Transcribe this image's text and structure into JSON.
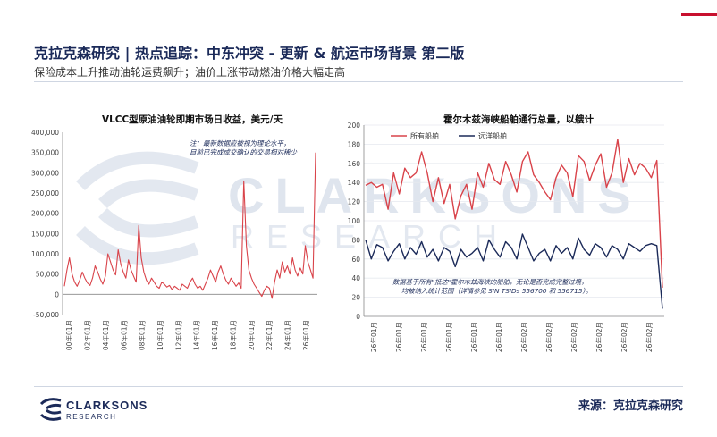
{
  "header": {
    "title": "克拉克森研究 | 热点追踪：中东冲突 - 更新 & 航运市场背景 第二版",
    "subtitle": "保险成本上升推动油轮运费飙升；油价上涨带动燃油价格大幅走高"
  },
  "watermark": {
    "line1": "CLARKSONS",
    "line2": "RESEARCH"
  },
  "footer": {
    "logo_line1": "CLARKSONS",
    "logo_line2": "RESEARCH",
    "source": "来源：克拉克森研究"
  },
  "colors": {
    "navy": "#1b2a59",
    "red": "#d9434a",
    "accent_red": "#c8102e"
  },
  "chart_data": [
    {
      "type": "line",
      "title": "VLCC型原油油轮即期市场日收益，美元/天",
      "ylim": [
        -50000,
        400000
      ],
      "yticks": [
        "-50,000",
        "0",
        "50,000",
        "100,000",
        "150,000",
        "200,000",
        "250,000",
        "300,000",
        "350,000",
        "400,000"
      ],
      "ytick_values": [
        -50000,
        0,
        50000,
        100000,
        150000,
        200000,
        250000,
        300000,
        350000,
        400000
      ],
      "x_labels": [
        "00年01月",
        "02年01月",
        "04年01月",
        "06年01月",
        "08年01月",
        "10年01月",
        "12年01月",
        "14年01月",
        "16年01月",
        "18年01月",
        "20年01月",
        "22年01月",
        "24年01月",
        "26年01月"
      ],
      "annotation": "注：最新数据应被视为理论水平，目前已完成成交确认的交易相对稀少",
      "series": [
        {
          "name": "",
          "color": "#d9434a",
          "values": [
            20000,
            60000,
            90000,
            50000,
            30000,
            20000,
            35000,
            55000,
            40000,
            28000,
            22000,
            40000,
            70000,
            55000,
            38000,
            25000,
            45000,
            100000,
            80000,
            60000,
            48000,
            110000,
            75000,
            55000,
            40000,
            85000,
            60000,
            45000,
            30000,
            170000,
            90000,
            55000,
            35000,
            25000,
            40000,
            30000,
            20000,
            15000,
            30000,
            25000,
            18000,
            22000,
            12000,
            20000,
            15000,
            10000,
            25000,
            20000,
            15000,
            30000,
            40000,
            25000,
            15000,
            20000,
            10000,
            25000,
            40000,
            60000,
            45000,
            30000,
            55000,
            70000,
            50000,
            35000,
            25000,
            40000,
            30000,
            20000,
            28000,
            15000,
            280000,
            120000,
            60000,
            40000,
            25000,
            15000,
            5000,
            -5000,
            10000,
            20000,
            15000,
            -10000,
            30000,
            60000,
            40000,
            80000,
            55000,
            70000,
            50000,
            90000,
            60000,
            45000,
            65000,
            50000,
            120000,
            80000,
            60000,
            40000,
            350000
          ]
        }
      ]
    },
    {
      "type": "line",
      "title": "霍尔木兹海峡船舶通行总量，以艘计",
      "ylim": [
        0,
        200
      ],
      "yticks": [
        "0",
        "20",
        "40",
        "60",
        "80",
        "100",
        "120",
        "140",
        "160",
        "180",
        "200"
      ],
      "ytick_values": [
        0,
        20,
        40,
        60,
        80,
        100,
        120,
        140,
        160,
        180,
        200
      ],
      "x_labels": [
        "26年01月",
        "26年01月",
        "26年01月",
        "26年01月",
        "26年01月",
        "26年01月",
        "26年02月",
        "26年02月",
        "26年02月",
        "26年02月",
        "26年02月",
        "26年02月"
      ],
      "legend": [
        "所有船舶",
        "远洋船舶"
      ],
      "annotation": [
        "数据基于所有\"抵达\"霍尔木兹海峡的船舶，无论是否完成完整过境，",
        "均被纳入统计范围（详情参见 SIN TSIDs 556700 和 556715）。"
      ],
      "series": [
        {
          "name": "所有船舶",
          "color": "#d9434a",
          "values": [
            137,
            140,
            135,
            138,
            112,
            150,
            128,
            155,
            145,
            150,
            172,
            150,
            120,
            145,
            118,
            138,
            102,
            126,
            138,
            112,
            150,
            135,
            160,
            143,
            138,
            162,
            148,
            130,
            162,
            172,
            148,
            140,
            130,
            122,
            145,
            158,
            150,
            125,
            168,
            162,
            142,
            158,
            170,
            135,
            150,
            185,
            140,
            165,
            148,
            160,
            155,
            145,
            163,
            30
          ]
        },
        {
          "name": "远洋船舶",
          "color": "#1b2a59",
          "values": [
            80,
            60,
            75,
            72,
            58,
            68,
            76,
            60,
            72,
            65,
            78,
            62,
            70,
            58,
            72,
            68,
            52,
            70,
            62,
            66,
            72,
            58,
            80,
            70,
            62,
            78,
            72,
            60,
            86,
            72,
            58,
            66,
            70,
            58,
            74,
            66,
            72,
            60,
            82,
            70,
            64,
            76,
            72,
            62,
            74,
            70,
            60,
            76,
            72,
            68,
            74,
            76,
            74,
            8
          ]
        }
      ]
    }
  ]
}
